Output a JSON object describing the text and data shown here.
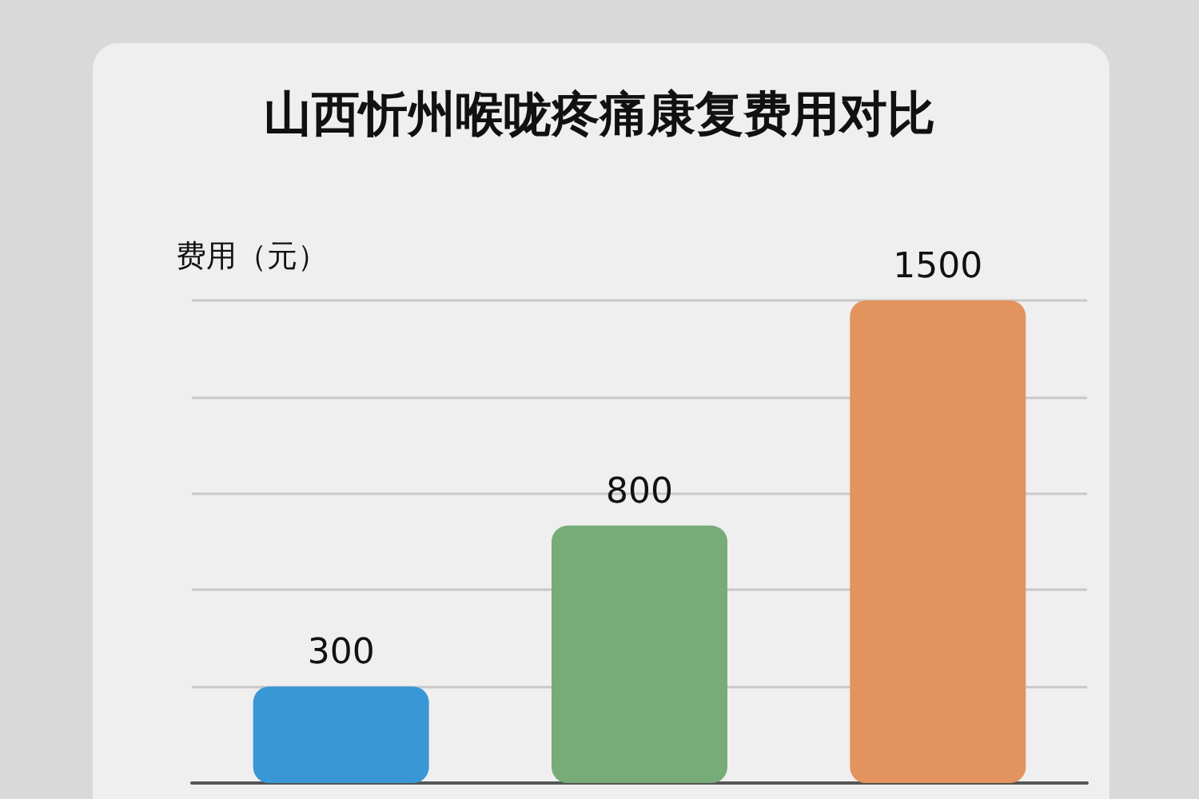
{
  "chart_data": {
    "type": "bar",
    "title": "山西忻州喉咙疼痛康复费用对比",
    "ylabel": "费用（元）",
    "categories": [
      null,
      null,
      null
    ],
    "values": [
      300,
      800,
      1500
    ],
    "colors": [
      "#3a97d6",
      "#77ab78",
      "#e3935e"
    ],
    "data_labels": true,
    "grid": "y",
    "tick_labels": false
  }
}
